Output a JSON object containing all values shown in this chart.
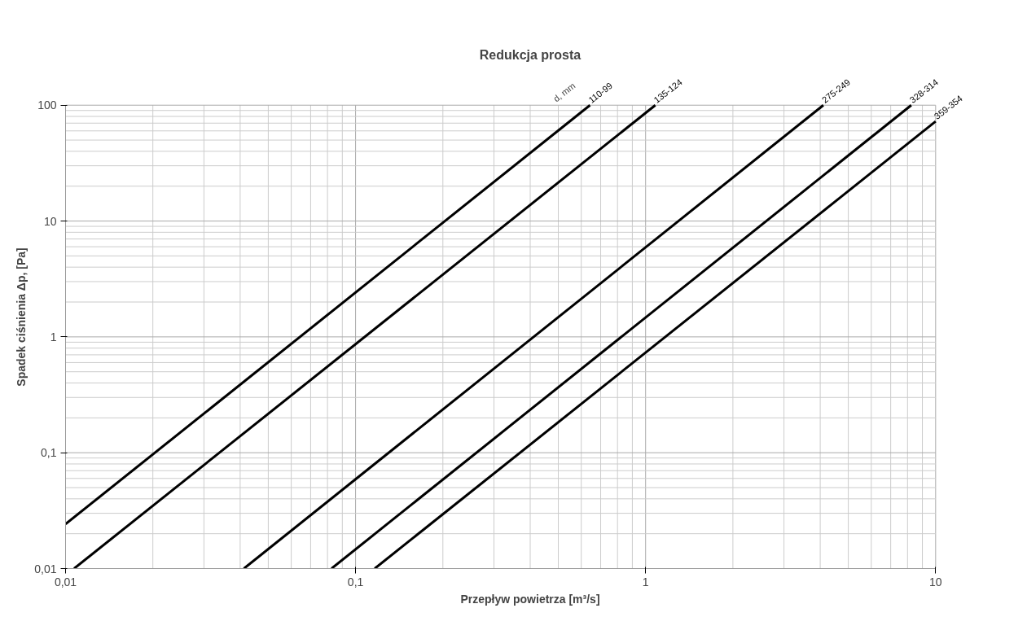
{
  "chart_data": {
    "type": "line",
    "title": "Redukcja prosta",
    "xlabel": "Przepływ powietrza [m³/s]",
    "ylabel": "Spadek ciśnienia Δp, [Pa]",
    "log": "xy",
    "grid": true,
    "legend": false,
    "marker": "none",
    "line_style": "solid",
    "xlim": [
      0.01,
      10
    ],
    "ylim": [
      0.01,
      100
    ],
    "xticks": [
      {
        "value": 0.01,
        "label": "0,01"
      },
      {
        "value": 0.1,
        "label": "0,1"
      },
      1,
      10
    ],
    "yticks": [
      {
        "value": 0.01,
        "label": "0,01"
      },
      {
        "value": 0.1,
        "label": "0,1"
      },
      1,
      10,
      100
    ],
    "annotations": [
      "d, mm"
    ],
    "series": [
      {
        "name": "110-99",
        "color": "#000000",
        "x": [
          0.01,
          0.643
        ],
        "values": [
          0.0242,
          100
        ]
      },
      {
        "name": "135-124",
        "color": "#000000",
        "x": [
          0.0107,
          1.08
        ],
        "values": [
          0.01,
          100
        ]
      },
      {
        "name": "275-249",
        "color": "#000000",
        "x": [
          0.0412,
          4.1
        ],
        "values": [
          0.01,
          100
        ]
      },
      {
        "name": "328-314",
        "color": "#000000",
        "x": [
          0.0826,
          8.24
        ],
        "values": [
          0.01,
          100
        ]
      },
      {
        "name": "359-354",
        "color": "#000000",
        "x": [
          0.1164,
          10
        ],
        "values": [
          0.01,
          72.4
        ]
      }
    ]
  }
}
